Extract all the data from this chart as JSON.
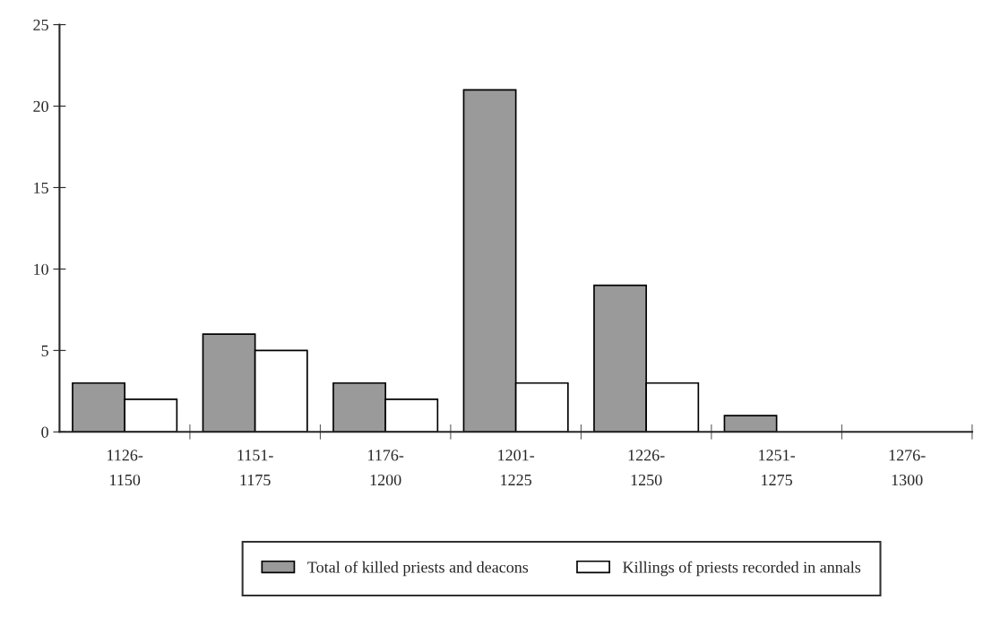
{
  "chart_data": {
    "type": "bar",
    "categories": [
      "1126-\n1150",
      "1151-\n1175",
      "1176-\n1200",
      "1201-\n1225",
      "1226-\n1250",
      "1251-\n1275",
      "1276-\n1300"
    ],
    "series": [
      {
        "name": "Total of killed priests and deacons",
        "color": "#9a9a9a",
        "values": [
          3,
          6,
          3,
          21,
          9,
          1,
          0
        ]
      },
      {
        "name": "Killings of priests recorded in annals",
        "color": "#ffffff",
        "values": [
          2,
          5,
          2,
          3,
          3,
          0,
          0
        ]
      }
    ],
    "ylim": [
      0,
      25
    ],
    "yticks": [
      0,
      5,
      10,
      15,
      20,
      25
    ],
    "grid": false,
    "legend": "bottom"
  }
}
